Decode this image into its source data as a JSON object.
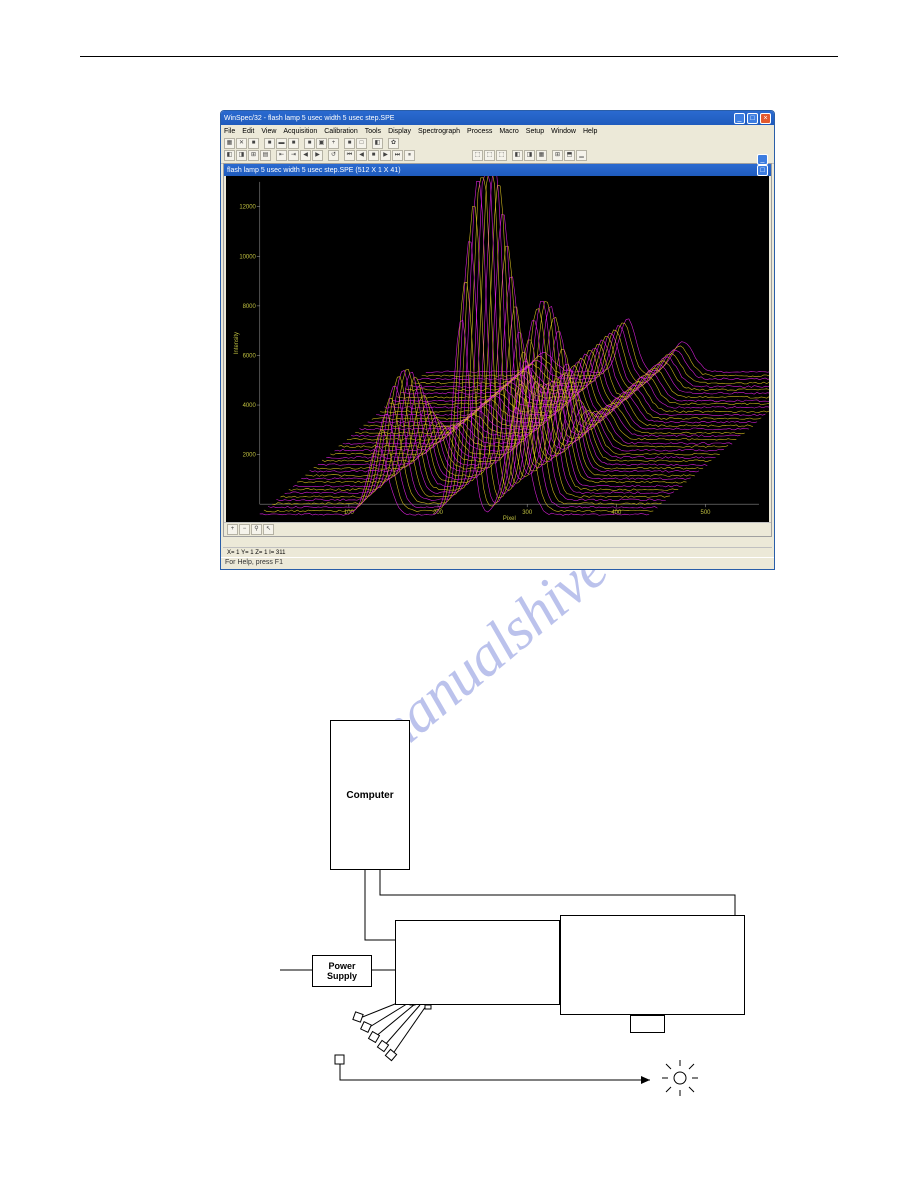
{
  "watermark_text": "manualshive",
  "app": {
    "title": "WinSpec/32 - flash lamp 5 usec width 5 usec step.SPE",
    "menu": [
      "File",
      "Edit",
      "View",
      "Acquisition",
      "Calibration",
      "Tools",
      "Display",
      "Spectrograph",
      "Process",
      "Macro",
      "Setup",
      "Window",
      "Help"
    ],
    "inner_title": "flash lamp 5 usec width 5 usec step.SPE (512 X 1 X 41)",
    "status": "For Help, press F1",
    "info_line": "X=  1   Y=  1 Z=  1 I= 311",
    "chart": {
      "ylabel": "Intensity",
      "xlabel": "Pixel",
      "y_ticks": [
        2000,
        4000,
        6000,
        8000,
        10000,
        12000
      ],
      "x_ticks": [
        100,
        200,
        300,
        400,
        500
      ],
      "background": "#000000",
      "trace_colors": [
        "#e020e0",
        "#d8c020"
      ],
      "peaks_x": [
        170,
        290,
        370
      ],
      "peaks_height": [
        0.35,
        1.0,
        0.55
      ],
      "peak_widths": [
        14,
        12,
        15
      ],
      "n_traces": 41,
      "stagger_dx": 4.2,
      "stagger_dy": 3.6,
      "xlim": [
        0,
        560
      ],
      "ylim": [
        0,
        13000
      ]
    }
  },
  "diagram": {
    "boxes": {
      "computer": "Computer",
      "psu": "Power\nSupply"
    }
  }
}
